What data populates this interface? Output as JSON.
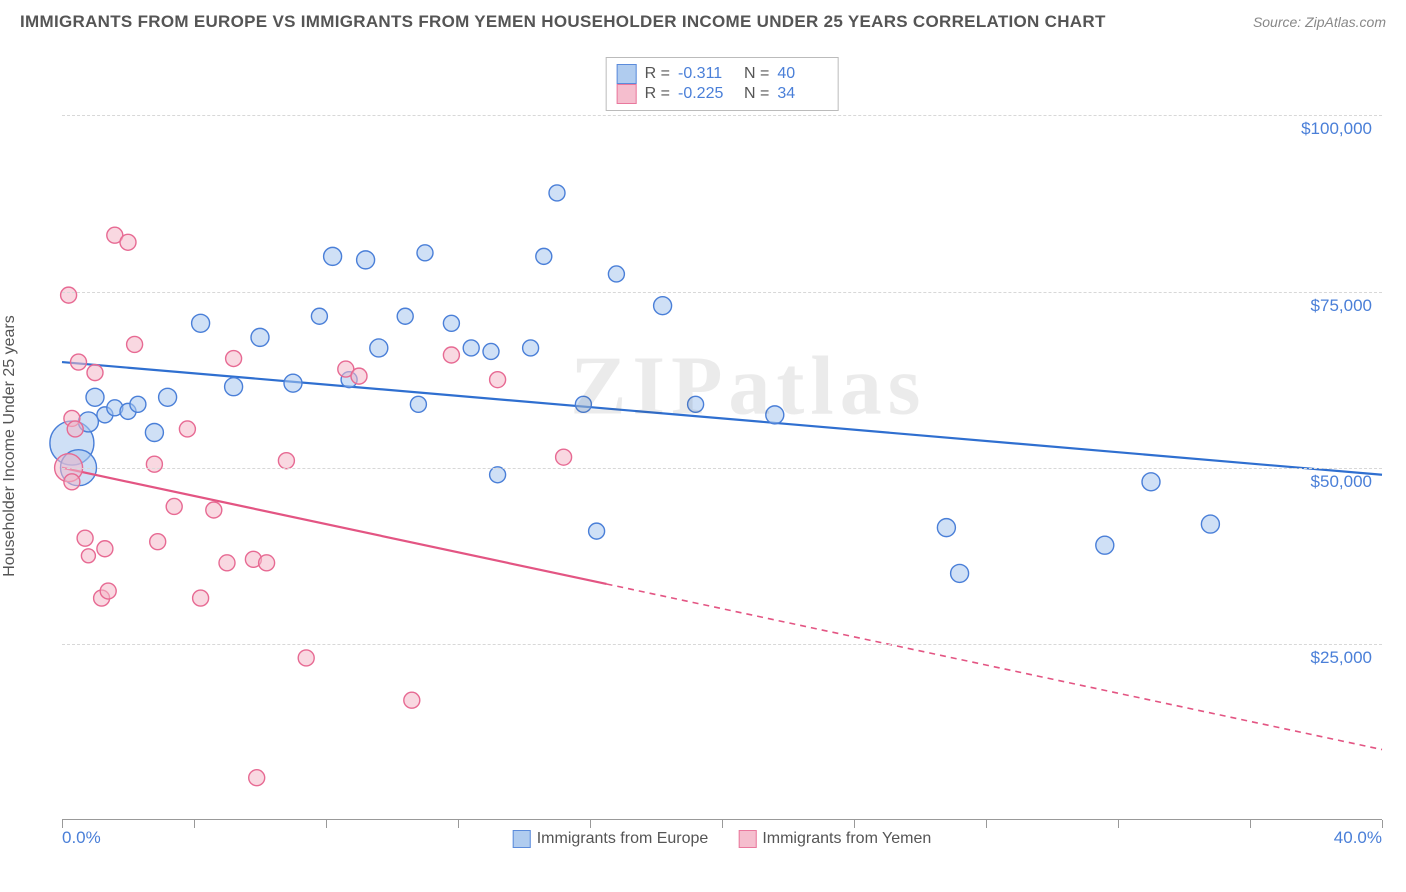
{
  "header": {
    "title": "IMMIGRANTS FROM EUROPE VS IMMIGRANTS FROM YEMEN HOUSEHOLDER INCOME UNDER 25 YEARS CORRELATION CHART",
    "source_label": "Source: ",
    "source_name": "ZipAtlas.com"
  },
  "watermark": "ZIPatlas",
  "chart": {
    "type": "scatter",
    "ylabel": "Householder Income Under 25 years",
    "xlim": [
      0,
      40
    ],
    "ylim": [
      0,
      110000
    ],
    "xaxis_min_label": "0.0%",
    "xaxis_max_label": "40.0%",
    "yticks": [
      {
        "v": 25000,
        "label": "$25,000"
      },
      {
        "v": 50000,
        "label": "$50,000"
      },
      {
        "v": 75000,
        "label": "$75,000"
      },
      {
        "v": 100000,
        "label": "$100,000"
      }
    ],
    "xtick_positions": [
      0,
      4,
      8,
      12,
      16,
      20,
      24,
      28,
      32,
      36,
      40
    ],
    "grid_color": "#d8d8d8",
    "background_color": "#ffffff",
    "series": [
      {
        "name": "Immigrants from Europe",
        "fill": "#a8c7ee",
        "stroke": "#4a7fd8",
        "fill_opacity": 0.55,
        "line_color": "#2f6fd0",
        "trend": {
          "x1": 0,
          "y1": 65000,
          "x2": 40,
          "y2": 49000,
          "dash_from_x": null
        },
        "R_label": "R = ",
        "R": "-0.311",
        "N_label": "N = ",
        "N": "40",
        "points": [
          {
            "x": 0.3,
            "y": 53500,
            "r": 22
          },
          {
            "x": 0.5,
            "y": 50000,
            "r": 18
          },
          {
            "x": 0.8,
            "y": 56500,
            "r": 10
          },
          {
            "x": 1.0,
            "y": 60000,
            "r": 9
          },
          {
            "x": 1.3,
            "y": 57500,
            "r": 8
          },
          {
            "x": 1.6,
            "y": 58500,
            "r": 8
          },
          {
            "x": 2.0,
            "y": 58000,
            "r": 8
          },
          {
            "x": 2.3,
            "y": 59000,
            "r": 8
          },
          {
            "x": 2.8,
            "y": 55000,
            "r": 9
          },
          {
            "x": 3.2,
            "y": 60000,
            "r": 9
          },
          {
            "x": 4.2,
            "y": 70500,
            "r": 9
          },
          {
            "x": 5.2,
            "y": 61500,
            "r": 9
          },
          {
            "x": 6.0,
            "y": 68500,
            "r": 9
          },
          {
            "x": 7.0,
            "y": 62000,
            "r": 9
          },
          {
            "x": 7.8,
            "y": 71500,
            "r": 8
          },
          {
            "x": 8.2,
            "y": 80000,
            "r": 9
          },
          {
            "x": 8.7,
            "y": 62500,
            "r": 8
          },
          {
            "x": 9.2,
            "y": 79500,
            "r": 9
          },
          {
            "x": 9.6,
            "y": 67000,
            "r": 9
          },
          {
            "x": 10.4,
            "y": 71500,
            "r": 8
          },
          {
            "x": 10.8,
            "y": 59000,
            "r": 8
          },
          {
            "x": 11.0,
            "y": 80500,
            "r": 8
          },
          {
            "x": 11.8,
            "y": 70500,
            "r": 8
          },
          {
            "x": 12.4,
            "y": 67000,
            "r": 8
          },
          {
            "x": 13.0,
            "y": 66500,
            "r": 8
          },
          {
            "x": 13.2,
            "y": 49000,
            "r": 8
          },
          {
            "x": 14.2,
            "y": 67000,
            "r": 8
          },
          {
            "x": 14.6,
            "y": 80000,
            "r": 8
          },
          {
            "x": 15.0,
            "y": 89000,
            "r": 8
          },
          {
            "x": 15.8,
            "y": 59000,
            "r": 8
          },
          {
            "x": 16.2,
            "y": 41000,
            "r": 8
          },
          {
            "x": 16.8,
            "y": 77500,
            "r": 8
          },
          {
            "x": 18.2,
            "y": 73000,
            "r": 9
          },
          {
            "x": 19.2,
            "y": 59000,
            "r": 8
          },
          {
            "x": 21.6,
            "y": 57500,
            "r": 9
          },
          {
            "x": 26.8,
            "y": 41500,
            "r": 9
          },
          {
            "x": 27.2,
            "y": 35000,
            "r": 9
          },
          {
            "x": 31.6,
            "y": 39000,
            "r": 9
          },
          {
            "x": 33.0,
            "y": 48000,
            "r": 9
          },
          {
            "x": 34.8,
            "y": 42000,
            "r": 9
          }
        ]
      },
      {
        "name": "Immigrants from Yemen",
        "fill": "#f4b8c9",
        "stroke": "#e76a93",
        "fill_opacity": 0.55,
        "line_color": "#e35583",
        "trend": {
          "x1": 0,
          "y1": 50000,
          "x2": 40,
          "y2": 10000,
          "dash_from_x": 16.5
        },
        "R_label": "R = ",
        "R": "-0.225",
        "N_label": "N = ",
        "N": "34",
        "points": [
          {
            "x": 0.2,
            "y": 50000,
            "r": 14
          },
          {
            "x": 0.2,
            "y": 74500,
            "r": 8
          },
          {
            "x": 0.3,
            "y": 57000,
            "r": 8
          },
          {
            "x": 0.3,
            "y": 48000,
            "r": 8
          },
          {
            "x": 0.4,
            "y": 55500,
            "r": 8
          },
          {
            "x": 0.5,
            "y": 65000,
            "r": 8
          },
          {
            "x": 0.7,
            "y": 40000,
            "r": 8
          },
          {
            "x": 0.8,
            "y": 37500,
            "r": 7
          },
          {
            "x": 1.0,
            "y": 63500,
            "r": 8
          },
          {
            "x": 1.2,
            "y": 31500,
            "r": 8
          },
          {
            "x": 1.3,
            "y": 38500,
            "r": 8
          },
          {
            "x": 1.4,
            "y": 32500,
            "r": 8
          },
          {
            "x": 1.6,
            "y": 83000,
            "r": 8
          },
          {
            "x": 2.0,
            "y": 82000,
            "r": 8
          },
          {
            "x": 2.2,
            "y": 67500,
            "r": 8
          },
          {
            "x": 2.8,
            "y": 50500,
            "r": 8
          },
          {
            "x": 2.9,
            "y": 39500,
            "r": 8
          },
          {
            "x": 3.4,
            "y": 44500,
            "r": 8
          },
          {
            "x": 3.8,
            "y": 55500,
            "r": 8
          },
          {
            "x": 4.2,
            "y": 31500,
            "r": 8
          },
          {
            "x": 4.6,
            "y": 44000,
            "r": 8
          },
          {
            "x": 5.0,
            "y": 36500,
            "r": 8
          },
          {
            "x": 5.2,
            "y": 65500,
            "r": 8
          },
          {
            "x": 5.8,
            "y": 37000,
            "r": 8
          },
          {
            "x": 5.9,
            "y": 6000,
            "r": 8
          },
          {
            "x": 6.2,
            "y": 36500,
            "r": 8
          },
          {
            "x": 6.8,
            "y": 51000,
            "r": 8
          },
          {
            "x": 7.4,
            "y": 23000,
            "r": 8
          },
          {
            "x": 8.6,
            "y": 64000,
            "r": 8
          },
          {
            "x": 9.0,
            "y": 63000,
            "r": 8
          },
          {
            "x": 10.6,
            "y": 17000,
            "r": 8
          },
          {
            "x": 11.8,
            "y": 66000,
            "r": 8
          },
          {
            "x": 13.2,
            "y": 62500,
            "r": 8
          },
          {
            "x": 15.2,
            "y": 51500,
            "r": 8
          }
        ]
      }
    ]
  }
}
